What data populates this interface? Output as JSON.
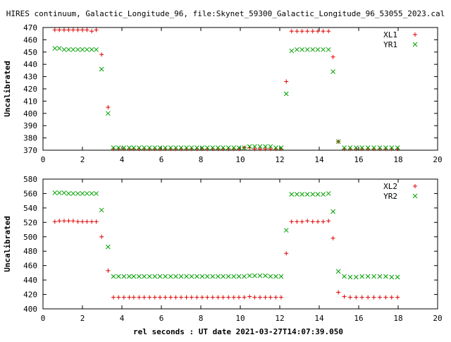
{
  "chart_data": [
    {
      "type": "scatter",
      "title": "HIRES continuum, Galactic_Longitude_96, file:Skynet_59300_Galactic_Longitude_96_53055_2023.cal",
      "xlabel": "",
      "ylabel": "Uncalibrated",
      "xlim": [
        0,
        20
      ],
      "ylim": [
        370,
        470
      ],
      "xticks": [
        "0",
        "2",
        "4",
        "6",
        "8",
        "10",
        "12",
        "14",
        "16",
        "18",
        "20"
      ],
      "yticks": [
        "370",
        "380",
        "390",
        "400",
        "410",
        "420",
        "430",
        "440",
        "450",
        "460",
        "470"
      ],
      "legend_position": "top-right",
      "x": [
        0.6,
        0.83,
        1.07,
        1.3,
        1.53,
        1.77,
        2.0,
        2.23,
        2.47,
        2.7,
        2.97,
        3.3,
        3.57,
        3.83,
        4.1,
        4.37,
        4.6,
        4.87,
        5.13,
        5.4,
        5.67,
        5.93,
        6.2,
        6.47,
        6.73,
        7.0,
        7.27,
        7.53,
        7.8,
        8.07,
        8.33,
        8.6,
        8.87,
        9.13,
        9.4,
        9.67,
        9.93,
        10.2,
        10.47,
        10.73,
        11.0,
        11.27,
        11.53,
        11.8,
        12.07,
        12.33,
        12.6,
        12.87,
        13.13,
        13.4,
        13.67,
        13.93,
        14.2,
        14.47,
        14.7,
        14.97,
        15.27,
        15.57,
        15.87,
        16.17,
        16.47,
        16.77,
        17.07,
        17.37,
        17.67,
        17.97
      ],
      "series": [
        {
          "name": "XL1",
          "color": "#e00000",
          "marker": "plus",
          "values": [
            468,
            468,
            468,
            468,
            468,
            468,
            468,
            468,
            467,
            468,
            448,
            405,
            371,
            371,
            371,
            371,
            371,
            371,
            371,
            371,
            371,
            371,
            371,
            371,
            371,
            371,
            371,
            371,
            371,
            371,
            371,
            371,
            371,
            371,
            371,
            371,
            371,
            372,
            372,
            371,
            371,
            371,
            371,
            371,
            371,
            426,
            467,
            467,
            467,
            467,
            467,
            467,
            467,
            467,
            446,
            377,
            371,
            371,
            371,
            371,
            371,
            371,
            371,
            371,
            371,
            371
          ]
        },
        {
          "name": "YR1",
          "color": "#00a000",
          "marker": "cross",
          "values": [
            453,
            453,
            452,
            452,
            452,
            452,
            452,
            452,
            452,
            452,
            436,
            400,
            372,
            372,
            372,
            372,
            372,
            372,
            372,
            372,
            372,
            372,
            372,
            372,
            372,
            372,
            372,
            372,
            372,
            372,
            372,
            372,
            372,
            372,
            372,
            372,
            372,
            372,
            373,
            373,
            373,
            373,
            373,
            372,
            372,
            416,
            451,
            452,
            452,
            452,
            452,
            452,
            452,
            452,
            434,
            377,
            372,
            372,
            372,
            372,
            372,
            372,
            372,
            372,
            372,
            372
          ]
        }
      ]
    },
    {
      "type": "scatter",
      "title": "",
      "xlabel": "rel seconds : UT date 2021-03-27T14:07:39.050",
      "ylabel": "Uncalibrated",
      "xlim": [
        0,
        20
      ],
      "ylim": [
        400,
        580
      ],
      "xticks": [
        "0",
        "2",
        "4",
        "6",
        "8",
        "10",
        "12",
        "14",
        "16",
        "18",
        "20"
      ],
      "yticks": [
        "400",
        "420",
        "440",
        "460",
        "480",
        "500",
        "520",
        "540",
        "560",
        "580"
      ],
      "legend_position": "top-right",
      "x": [
        0.6,
        0.83,
        1.07,
        1.3,
        1.53,
        1.77,
        2.0,
        2.23,
        2.47,
        2.7,
        2.97,
        3.3,
        3.57,
        3.83,
        4.1,
        4.37,
        4.6,
        4.87,
        5.13,
        5.4,
        5.67,
        5.93,
        6.2,
        6.47,
        6.73,
        7.0,
        7.27,
        7.53,
        7.8,
        8.07,
        8.33,
        8.6,
        8.87,
        9.13,
        9.4,
        9.67,
        9.93,
        10.2,
        10.47,
        10.73,
        11.0,
        11.27,
        11.53,
        11.8,
        12.07,
        12.33,
        12.6,
        12.87,
        13.13,
        13.4,
        13.67,
        13.93,
        14.2,
        14.47,
        14.7,
        14.97,
        15.27,
        15.57,
        15.87,
        16.17,
        16.47,
        16.77,
        17.07,
        17.37,
        17.67,
        17.97
      ],
      "series": [
        {
          "name": "XL2",
          "color": "#e00000",
          "marker": "plus",
          "values": [
            521,
            522,
            522,
            522,
            522,
            521,
            521,
            521,
            521,
            521,
            500,
            453,
            416,
            416,
            416,
            416,
            416,
            416,
            416,
            416,
            416,
            416,
            416,
            416,
            416,
            416,
            416,
            416,
            416,
            416,
            416,
            416,
            416,
            416,
            416,
            416,
            416,
            416,
            417,
            416,
            416,
            416,
            416,
            416,
            416,
            477,
            521,
            521,
            521,
            522,
            521,
            521,
            521,
            522,
            498,
            423,
            417,
            416,
            416,
            416,
            416,
            416,
            416,
            416,
            416,
            416
          ]
        },
        {
          "name": "YR2",
          "color": "#00a000",
          "marker": "cross",
          "values": [
            561,
            561,
            561,
            560,
            560,
            560,
            560,
            560,
            560,
            560,
            537,
            486,
            445,
            445,
            445,
            445,
            445,
            445,
            445,
            445,
            445,
            445,
            445,
            445,
            445,
            445,
            445,
            445,
            445,
            445,
            445,
            445,
            445,
            445,
            445,
            445,
            445,
            445,
            446,
            446,
            446,
            446,
            445,
            445,
            445,
            509,
            559,
            559,
            559,
            559,
            559,
            559,
            559,
            560,
            535,
            452,
            445,
            444,
            444,
            445,
            445,
            445,
            445,
            445,
            444,
            444
          ]
        }
      ]
    }
  ]
}
